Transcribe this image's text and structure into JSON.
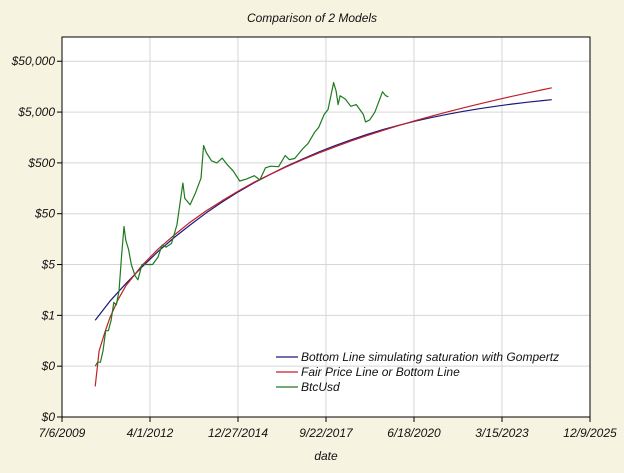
{
  "chart_data": {
    "type": "line",
    "title": "Comparison of 2 Models",
    "xlabel": "date",
    "ylabel": "",
    "x_axis": {
      "scale": "date",
      "range": [
        "2009-07-06",
        "2025-12-09"
      ],
      "ticks": [
        {
          "date": "2009-07-06",
          "label": "7/6/2009"
        },
        {
          "date": "2012-04-01",
          "label": "4/1/2012"
        },
        {
          "date": "2014-12-27",
          "label": "12/27/2014"
        },
        {
          "date": "2017-09-22",
          "label": "9/22/2017"
        },
        {
          "date": "2020-06-18",
          "label": "6/18/2020"
        },
        {
          "date": "2023-03-15",
          "label": "3/15/2023"
        },
        {
          "date": "2025-12-09",
          "label": "12/9/2025"
        }
      ]
    },
    "y_axis": {
      "scale": "log",
      "range": [
        0.005,
        150000
      ],
      "ticks": [
        {
          "value": 0.005,
          "label": "$0"
        },
        {
          "value": 0.05,
          "label": "$0"
        },
        {
          "value": 0.5,
          "label": "$1"
        },
        {
          "value": 5,
          "label": "$5"
        },
        {
          "value": 50,
          "label": "$50"
        },
        {
          "value": 500,
          "label": "$500"
        },
        {
          "value": 5000,
          "label": "$5,000"
        },
        {
          "value": 50000,
          "label": "$50,000"
        }
      ]
    },
    "grid": true,
    "legend_position": "bottom-right",
    "series": [
      {
        "name": "Bottom Line simulating saturation with Gompertz",
        "color": "#1a1a7a",
        "points": [
          [
            "2010-07-18",
            0.4
          ],
          [
            "2011-01-01",
            0.95
          ],
          [
            "2011-07-01",
            2.1
          ],
          [
            "2012-01-01",
            4.5
          ],
          [
            "2012-07-01",
            9
          ],
          [
            "2013-01-01",
            17
          ],
          [
            "2013-07-01",
            30
          ],
          [
            "2014-01-01",
            52
          ],
          [
            "2014-07-01",
            85
          ],
          [
            "2015-01-01",
            135
          ],
          [
            "2015-07-01",
            205
          ],
          [
            "2016-01-01",
            300
          ],
          [
            "2016-07-01",
            430
          ],
          [
            "2017-01-01",
            600
          ],
          [
            "2017-07-01",
            820
          ],
          [
            "2018-01-01",
            1090
          ],
          [
            "2018-07-01",
            1420
          ],
          [
            "2019-01-01",
            1810
          ],
          [
            "2019-07-01",
            2260
          ],
          [
            "2020-01-01",
            2760
          ],
          [
            "2020-07-01",
            3300
          ],
          [
            "2021-01-01",
            3900
          ],
          [
            "2021-07-01",
            4520
          ],
          [
            "2022-01-01",
            5170
          ],
          [
            "2022-07-01",
            5830
          ],
          [
            "2023-01-01",
            6500
          ],
          [
            "2023-07-01",
            7160
          ],
          [
            "2024-01-01",
            7810
          ],
          [
            "2024-07-01",
            8430
          ],
          [
            "2024-10-01",
            8750
          ]
        ]
      },
      {
        "name": "Fair Price Line or Bottom Line",
        "color": "#c0202a",
        "points": [
          [
            "2010-07-18",
            0.02
          ],
          [
            "2010-09-01",
            0.1
          ],
          [
            "2010-11-01",
            0.22
          ],
          [
            "2011-01-01",
            0.45
          ],
          [
            "2011-04-01",
            1.0
          ],
          [
            "2011-07-01",
            1.9
          ],
          [
            "2012-01-01",
            4.8
          ],
          [
            "2012-07-01",
            10
          ],
          [
            "2013-01-01",
            19
          ],
          [
            "2013-07-01",
            34
          ],
          [
            "2014-01-01",
            57
          ],
          [
            "2014-07-01",
            90
          ],
          [
            "2015-01-01",
            140
          ],
          [
            "2015-07-01",
            210
          ],
          [
            "2016-01-01",
            300
          ],
          [
            "2016-07-01",
            420
          ],
          [
            "2017-01-01",
            580
          ],
          [
            "2017-07-01",
            780
          ],
          [
            "2018-01-01",
            1030
          ],
          [
            "2018-07-01",
            1340
          ],
          [
            "2019-01-01",
            1720
          ],
          [
            "2019-07-01",
            2180
          ],
          [
            "2020-01-01",
            2730
          ],
          [
            "2020-07-01",
            3380
          ],
          [
            "2021-01-01",
            4140
          ],
          [
            "2021-07-01",
            5030
          ],
          [
            "2022-01-01",
            6060
          ],
          [
            "2022-07-01",
            7250
          ],
          [
            "2023-01-01",
            8600
          ],
          [
            "2023-07-01",
            10150
          ],
          [
            "2024-01-01",
            11900
          ],
          [
            "2024-07-01",
            13900
          ],
          [
            "2024-10-01",
            15000
          ]
        ]
      },
      {
        "name": "BtcUsd",
        "color": "#1e7a1e",
        "points": [
          [
            "2010-07-18",
            0.05
          ],
          [
            "2010-08-15",
            0.06
          ],
          [
            "2010-09-15",
            0.06
          ],
          [
            "2010-10-15",
            0.1
          ],
          [
            "2010-11-15",
            0.25
          ],
          [
            "2010-12-15",
            0.25
          ],
          [
            "2011-01-15",
            0.4
          ],
          [
            "2011-02-15",
            0.9
          ],
          [
            "2011-03-15",
            0.8
          ],
          [
            "2011-04-15",
            1.5
          ],
          [
            "2011-05-15",
            8
          ],
          [
            "2011-06-10",
            28
          ],
          [
            "2011-07-01",
            15
          ],
          [
            "2011-08-01",
            10
          ],
          [
            "2011-09-01",
            5
          ],
          [
            "2011-10-15",
            3
          ],
          [
            "2011-11-15",
            2.5
          ],
          [
            "2012-01-01",
            5
          ],
          [
            "2012-03-01",
            5
          ],
          [
            "2012-05-01",
            5
          ],
          [
            "2012-07-01",
            7
          ],
          [
            "2012-08-15",
            12
          ],
          [
            "2012-10-01",
            11
          ],
          [
            "2012-12-01",
            13
          ],
          [
            "2013-02-01",
            30
          ],
          [
            "2013-04-10",
            200
          ],
          [
            "2013-05-01",
            100
          ],
          [
            "2013-07-01",
            75
          ],
          [
            "2013-09-01",
            130
          ],
          [
            "2013-11-01",
            250
          ],
          [
            "2013-12-01",
            1100
          ],
          [
            "2014-01-01",
            800
          ],
          [
            "2014-03-01",
            550
          ],
          [
            "2014-05-01",
            500
          ],
          [
            "2014-07-01",
            620
          ],
          [
            "2014-09-01",
            450
          ],
          [
            "2014-11-01",
            350
          ],
          [
            "2015-01-15",
            220
          ],
          [
            "2015-04-01",
            240
          ],
          [
            "2015-07-01",
            280
          ],
          [
            "2015-09-01",
            230
          ],
          [
            "2015-11-05",
            400
          ],
          [
            "2016-01-01",
            430
          ],
          [
            "2016-04-01",
            420
          ],
          [
            "2016-06-15",
            700
          ],
          [
            "2016-08-01",
            580
          ],
          [
            "2016-10-01",
            610
          ],
          [
            "2017-01-01",
            950
          ],
          [
            "2017-03-01",
            1200
          ],
          [
            "2017-05-15",
            2000
          ],
          [
            "2017-07-01",
            2500
          ],
          [
            "2017-09-01",
            4500
          ],
          [
            "2017-10-15",
            5600
          ],
          [
            "2017-12-17",
            19000
          ],
          [
            "2018-01-15",
            13000
          ],
          [
            "2018-02-06",
            7000
          ],
          [
            "2018-03-01",
            10500
          ],
          [
            "2018-05-01",
            9000
          ],
          [
            "2018-07-01",
            6500
          ],
          [
            "2018-09-01",
            7000
          ],
          [
            "2018-11-20",
            4500
          ],
          [
            "2018-12-15",
            3200
          ],
          [
            "2019-02-01",
            3500
          ],
          [
            "2019-04-01",
            5000
          ],
          [
            "2019-06-26",
            12500
          ],
          [
            "2019-08-01",
            10500
          ],
          [
            "2019-09-01",
            10000
          ]
        ]
      }
    ]
  }
}
